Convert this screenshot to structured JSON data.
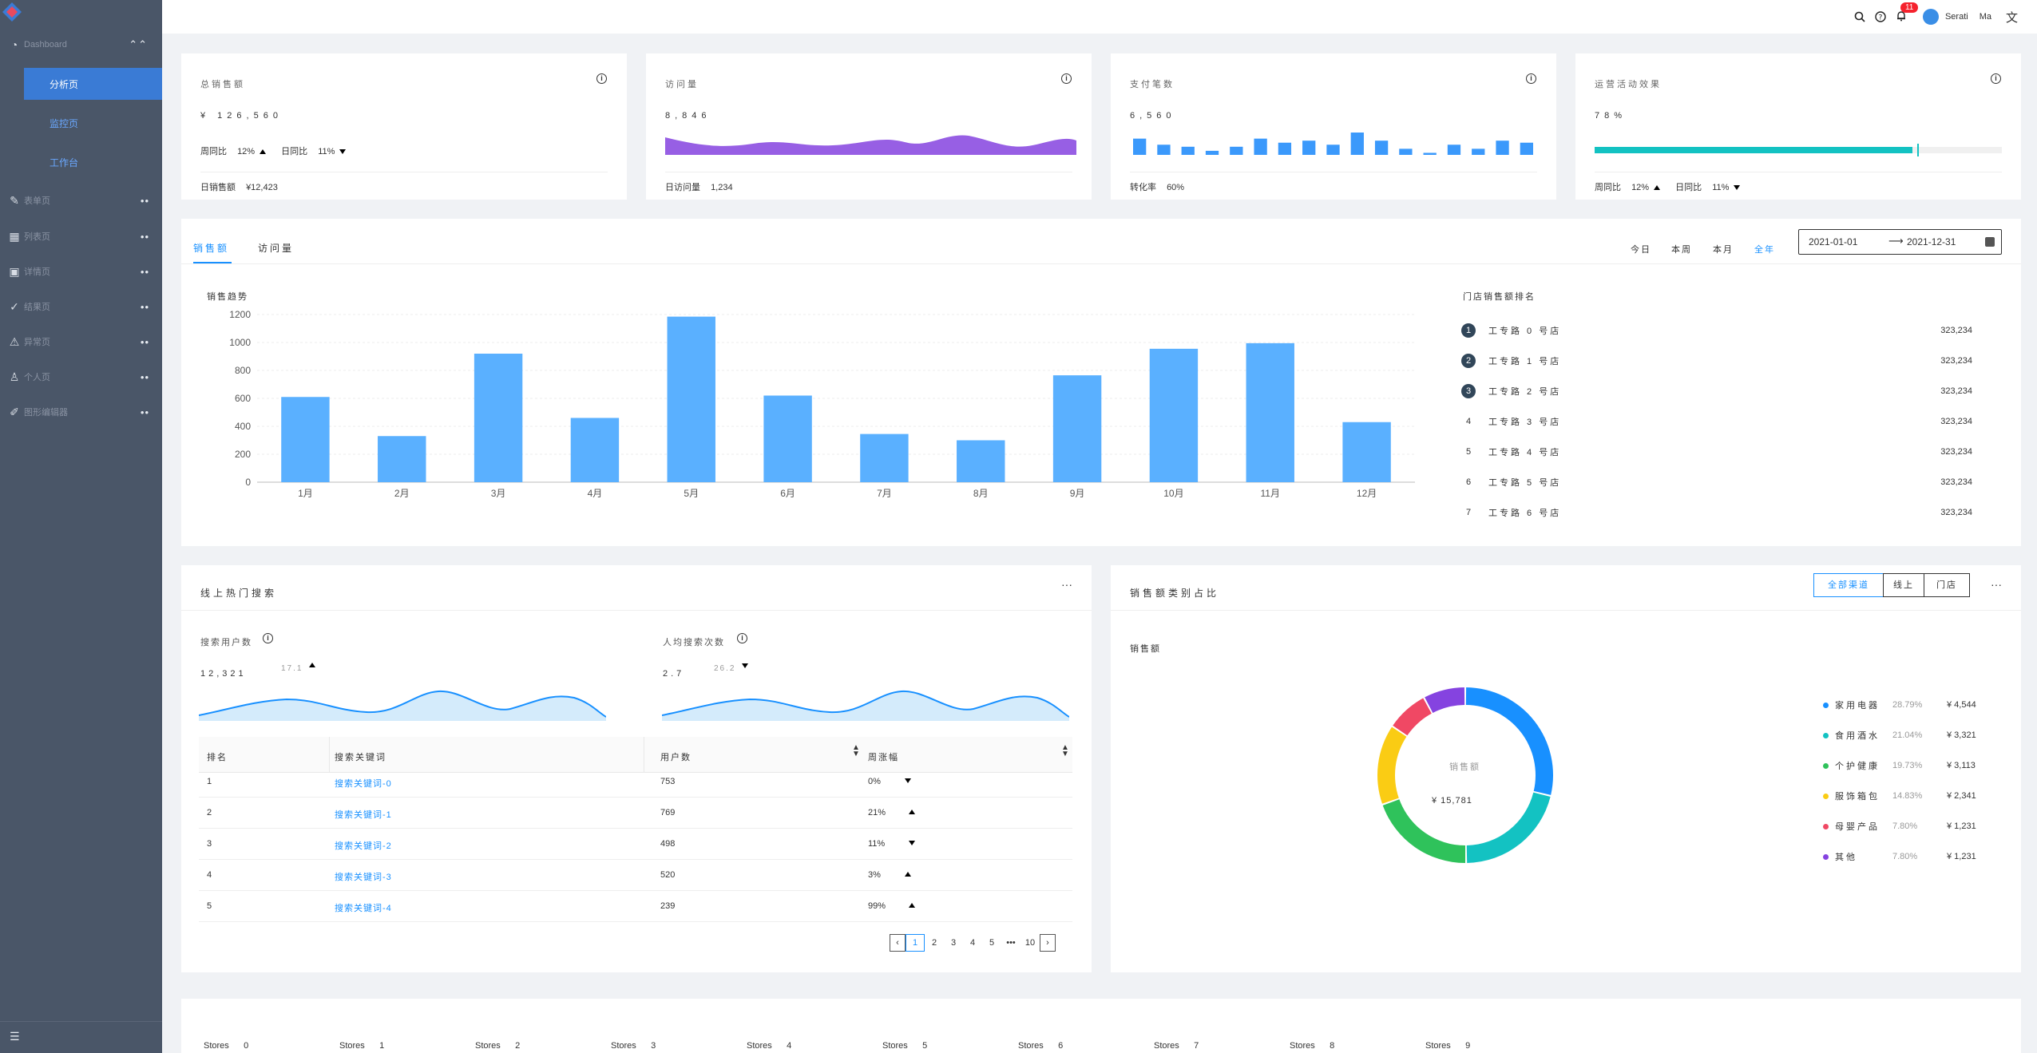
{
  "sidebar": {
    "dashboard_label": "Dashboard",
    "sub_items": [
      "分析页",
      "监控页",
      "工作台"
    ],
    "groups": [
      "表单页",
      "列表页",
      "详情页",
      "结果页",
      "异常页",
      "个人页",
      "图形编辑器"
    ]
  },
  "header": {
    "notification_count": "11",
    "user_name": "Serati",
    "user_suffix": "Ma"
  },
  "stats": [
    {
      "title": "总销售额",
      "value": "¥ 126,560",
      "week_label": "周同比",
      "week": "12%",
      "day_label": "日同比",
      "day": "11%",
      "foot_label": "日销售额",
      "foot_value": "¥12,423"
    },
    {
      "title": "访问量",
      "value": "8,846",
      "foot_label": "日访问量",
      "foot_value": "1,234"
    },
    {
      "title": "支付笔数",
      "value": "6,560",
      "foot_label": "转化率",
      "foot_value": "60%"
    },
    {
      "title": "运营活动效果",
      "value": "78%",
      "progress": 0.78,
      "week_label": "周同比",
      "week": "12%",
      "day_label": "日同比",
      "day": "11%"
    }
  ],
  "sales": {
    "tabs": [
      "销售额",
      "访问量"
    ],
    "ranges": [
      "今日",
      "本周",
      "本月",
      "全年"
    ],
    "date_start": "2021-01-01",
    "date_end": "2021-12-31",
    "chart_title": "销售趋势",
    "ranking_title": "门店销售额排名",
    "ranking": [
      {
        "rank": "1",
        "name": "工专路 0 号店",
        "value": "323,234"
      },
      {
        "rank": "2",
        "name": "工专路 1 号店",
        "value": "323,234"
      },
      {
        "rank": "3",
        "name": "工专路 2 号店",
        "value": "323,234"
      },
      {
        "rank": "4",
        "name": "工专路 3 号店",
        "value": "323,234"
      },
      {
        "rank": "5",
        "name": "工专路 4 号店",
        "value": "323,234"
      },
      {
        "rank": "6",
        "name": "工专路 5 号店",
        "value": "323,234"
      },
      {
        "rank": "7",
        "name": "工专路 6 号店",
        "value": "323,234"
      }
    ]
  },
  "search": {
    "title": "线上热门搜索",
    "users_label": "搜索用户数",
    "users_value": "12,321",
    "users_change": "17.1",
    "avg_label": "人均搜索次数",
    "avg_value": "2.7",
    "avg_change": "26.2",
    "columns": [
      "排名",
      "搜索关键词",
      "用户数",
      "周涨幅"
    ],
    "rows": [
      {
        "rank": "1",
        "keyword": "搜索关键词-0",
        "users": "753",
        "change": "0%",
        "dir": "down"
      },
      {
        "rank": "2",
        "keyword": "搜索关键词-1",
        "users": "769",
        "change": "21%",
        "dir": "up"
      },
      {
        "rank": "3",
        "keyword": "搜索关键词-2",
        "users": "498",
        "change": "11%",
        "dir": "down"
      },
      {
        "rank": "4",
        "keyword": "搜索关键词-3",
        "users": "520",
        "change": "3%",
        "dir": "up"
      },
      {
        "rank": "5",
        "keyword": "搜索关键词-4",
        "users": "239",
        "change": "99%",
        "dir": "up"
      }
    ],
    "pages": [
      "1",
      "2",
      "3",
      "4",
      "5",
      "•••",
      "10"
    ]
  },
  "category": {
    "title": "销售额类别占比",
    "segments": [
      "全部渠道",
      "线上",
      "门店"
    ],
    "sub_title": "销售额",
    "center_label": "销售额",
    "center_value": "¥ 15,781",
    "legend": [
      {
        "name": "家用电器",
        "percent": "28.79%",
        "value": "¥ 4,544",
        "color": "#1890ff"
      },
      {
        "name": "食用酒水",
        "percent": "21.04%",
        "value": "¥ 3,321",
        "color": "#13c2c2"
      },
      {
        "name": "个护健康",
        "percent": "19.73%",
        "value": "¥ 3,113",
        "color": "#2fc25b"
      },
      {
        "name": "服饰箱包",
        "percent": "14.83%",
        "value": "¥ 2,341",
        "color": "#facc14"
      },
      {
        "name": "母婴产品",
        "percent": "7.80%",
        "value": "¥ 1,231",
        "color": "#f04864"
      },
      {
        "name": "其他",
        "percent": "7.80%",
        "value": "¥ 1,231",
        "color": "#8543e0"
      }
    ]
  },
  "stores": [
    "Stores 0",
    "Stores 1",
    "Stores 2",
    "Stores 3",
    "Stores 4",
    "Stores 5",
    "Stores 6",
    "Stores 7",
    "Stores 8",
    "Stores 9"
  ],
  "chart_data": [
    {
      "type": "bar",
      "categories": [
        "1月",
        "2月",
        "3月",
        "4月",
        "5月",
        "6月",
        "7月",
        "8月",
        "9月",
        "10月",
        "11月",
        "12月"
      ],
      "values": [
        610,
        330,
        920,
        460,
        1185,
        620,
        345,
        300,
        765,
        955,
        995,
        430
      ],
      "title": "销售趋势",
      "ylim": [
        0,
        1200
      ],
      "yticks": [
        0,
        200,
        400,
        600,
        800,
        1000,
        1200
      ],
      "color": "#5ab0ff"
    },
    {
      "type": "bar",
      "values": [
        8,
        5,
        4,
        2,
        4,
        8,
        6,
        7,
        5,
        11,
        7,
        3,
        1,
        5,
        3,
        7,
        6
      ],
      "color": "#3b99fb"
    },
    {
      "type": "pie",
      "categories": [
        "家用电器",
        "食用酒水",
        "个护健康",
        "服饰箱包",
        "母婴产品",
        "其他"
      ],
      "values": [
        4544,
        3321,
        3113,
        2341,
        1231,
        1231
      ]
    }
  ]
}
